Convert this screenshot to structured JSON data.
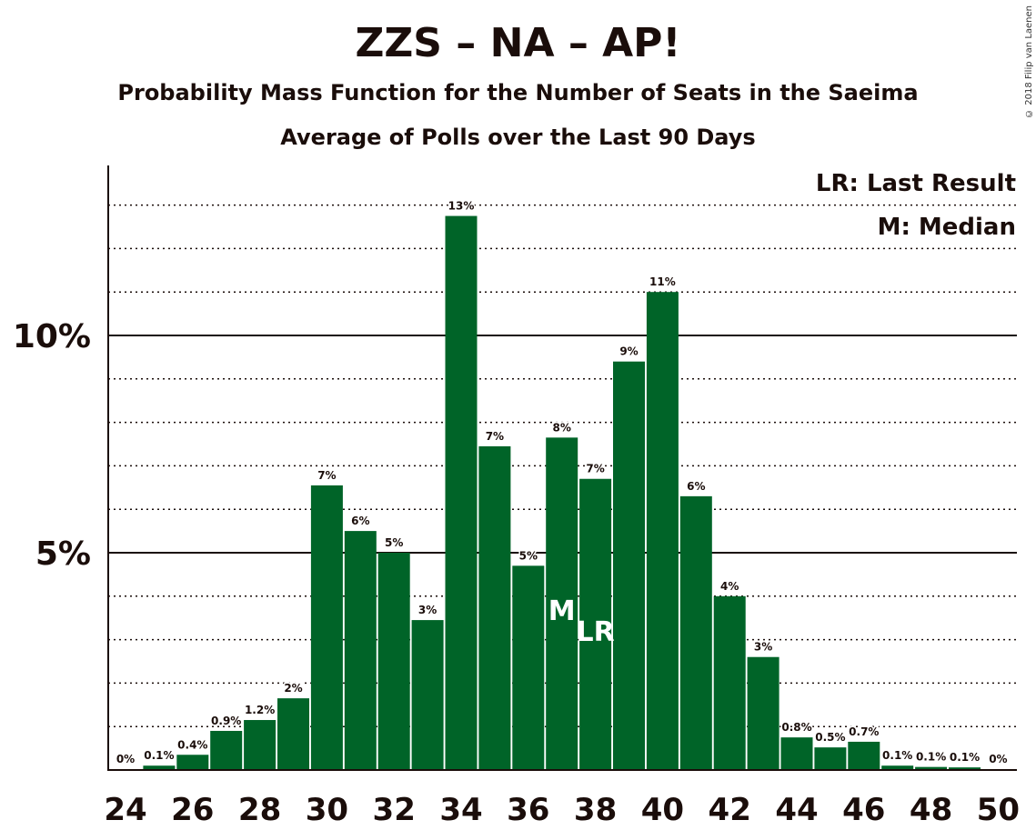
{
  "title": "ZZS – NA – AP!",
  "subtitle": "Probability Mass Function for the Number of Seats in the Saeima",
  "subtitle2": "Average of Polls over the Last 90 Days",
  "copyright": "© 2018 Filip van Laenen",
  "legend": {
    "last_result": "LR: Last Result",
    "median": "M: Median"
  },
  "colors": {
    "bar": "#006428",
    "text": "#1a0d0a"
  },
  "chart_data": {
    "type": "bar",
    "categories": [
      24,
      25,
      26,
      27,
      28,
      29,
      30,
      31,
      32,
      33,
      34,
      35,
      36,
      37,
      38,
      39,
      40,
      41,
      42,
      43,
      44,
      45,
      46,
      47,
      48,
      49,
      50
    ],
    "values": [
      0.0,
      0.1,
      0.35,
      0.9,
      1.15,
      1.65,
      6.55,
      5.5,
      5.0,
      3.45,
      12.75,
      7.45,
      4.7,
      7.65,
      6.7,
      9.4,
      11.0,
      6.3,
      4.0,
      2.6,
      0.75,
      0.52,
      0.65,
      0.1,
      0.07,
      0.06,
      0.0
    ],
    "labels": [
      "0%",
      "0.1%",
      "0.4%",
      "0.9%",
      "1.2%",
      "2%",
      "7%",
      "6%",
      "5%",
      "3%",
      "13%",
      "7%",
      "5%",
      "8%",
      "7%",
      "9%",
      "11%",
      "6%",
      "4%",
      "3%",
      "0.8%",
      "0.5%",
      "0.7%",
      "0.1%",
      "0.1%",
      "0.1%",
      "0%"
    ],
    "x_tick_labels": [
      "24",
      "26",
      "28",
      "30",
      "32",
      "34",
      "36",
      "38",
      "40",
      "42",
      "44",
      "46",
      "48",
      "50"
    ],
    "y_tick_labels": [
      "5%",
      "10%"
    ],
    "y_ticks": [
      5,
      10
    ],
    "ylim": [
      0,
      13.9
    ],
    "median_seat": 37,
    "median_marker": "M",
    "last_result_seat": 38,
    "last_result_marker": "LR",
    "xlabel": "",
    "ylabel": ""
  }
}
